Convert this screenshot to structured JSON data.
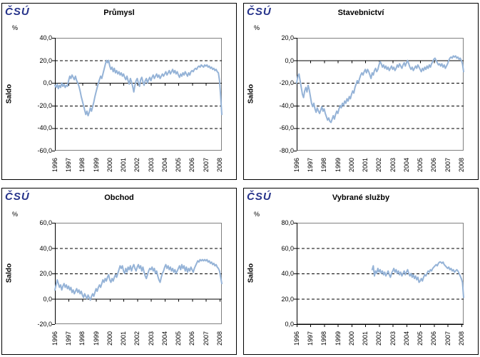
{
  "logo_text": "ČSÚ",
  "colors": {
    "series_line": "#95B3D7",
    "logo_navy": "#27348B",
    "plot_border": "#808080",
    "axis_black": "#000000"
  },
  "chart_data": [
    {
      "type": "line",
      "title": "Průmysl",
      "unit": "%",
      "ylabel": "Saldo",
      "ylim": [
        -60,
        40
      ],
      "y_ticks": [
        40,
        20,
        0,
        -20,
        -40,
        -60
      ],
      "y_tick_labels": [
        "40,0",
        "20,0",
        "0,0",
        "-20,0",
        "-40,0",
        "-60,0"
      ],
      "x_labels": [
        "1996",
        "1997",
        "1998",
        "1999",
        "2000",
        "2001",
        "2002",
        "2003",
        "2004",
        "2005",
        "2006",
        "2007",
        "2008"
      ],
      "x_tick_step": 12,
      "x_total_months": 147,
      "x_start_index": 0,
      "series_name": "saldo",
      "values": [
        -2,
        -4,
        -1,
        -5,
        -2,
        -4,
        0,
        -3,
        -1,
        -4,
        -2,
        -3,
        2,
        6,
        4,
        7,
        5,
        3,
        6,
        2,
        0,
        -3,
        -7,
        -12,
        -16,
        -20,
        -24,
        -28,
        -25,
        -29,
        -26,
        -22,
        -25,
        -21,
        -17,
        -12,
        -8,
        -4,
        0,
        3,
        6,
        4,
        8,
        12,
        16,
        20,
        18,
        20,
        15,
        12,
        14,
        10,
        13,
        9,
        11,
        8,
        10,
        7,
        9,
        6,
        8,
        5,
        3,
        6,
        2,
        -1,
        4,
        1,
        -3,
        -8,
        -2,
        2,
        4,
        0,
        -3,
        3,
        5,
        1,
        -2,
        2,
        4,
        0,
        3,
        5,
        2,
        5,
        7,
        4,
        6,
        8,
        5,
        7,
        4,
        6,
        8,
        6,
        8,
        10,
        7,
        9,
        11,
        8,
        10,
        12,
        9,
        11,
        8,
        10,
        7,
        5,
        8,
        6,
        9,
        7,
        10,
        8,
        6,
        9,
        7,
        10,
        11,
        10,
        12,
        13,
        12,
        14,
        15,
        14,
        16,
        15,
        14,
        16,
        15,
        16,
        14,
        15,
        13,
        14,
        12,
        13,
        11,
        12,
        10,
        9,
        2,
        -12,
        -28
      ]
    },
    {
      "type": "line",
      "title": "Stavebnictví",
      "unit": "%",
      "ylabel": "Saldo",
      "ylim": [
        -80,
        20
      ],
      "y_ticks": [
        20,
        0,
        -20,
        -40,
        -60,
        -80
      ],
      "y_tick_labels": [
        "20,0",
        "0,0",
        "-20,0",
        "-40,0",
        "-60,0",
        "-80,0"
      ],
      "x_labels": [
        "1996",
        "1997",
        "1998",
        "1999",
        "2000",
        "2001",
        "2002",
        "2003",
        "2004",
        "2005",
        "2006",
        "2007",
        "2008"
      ],
      "x_tick_step": 12,
      "x_total_months": 147,
      "x_start_index": 0,
      "series_name": "saldo",
      "values": [
        -20,
        -14,
        -12,
        -18,
        -24,
        -30,
        -33,
        -27,
        -24,
        -28,
        -22,
        -26,
        -32,
        -38,
        -41,
        -38,
        -43,
        -46,
        -42,
        -45,
        -47,
        -44,
        -41,
        -45,
        -43,
        -47,
        -50,
        -53,
        -51,
        -54,
        -55,
        -52,
        -49,
        -52,
        -48,
        -45,
        -47,
        -43,
        -40,
        -42,
        -38,
        -40,
        -36,
        -38,
        -34,
        -36,
        -32,
        -34,
        -30,
        -27,
        -29,
        -24,
        -21,
        -18,
        -20,
        -16,
        -13,
        -11,
        -13,
        -10,
        -8,
        -11,
        -8,
        -10,
        -13,
        -16,
        -11,
        -13,
        -9,
        -7,
        -10,
        -8,
        -4,
        -1,
        -3,
        -6,
        -4,
        -7,
        -5,
        -8,
        -6,
        -9,
        -7,
        -5,
        -8,
        -6,
        -9,
        -7,
        -4,
        -6,
        -3,
        -5,
        -7,
        -4,
        -2,
        -5,
        -2,
        0,
        -3,
        -6,
        -8,
        -6,
        -9,
        -7,
        -5,
        -7,
        -4,
        -6,
        -8,
        -10,
        -7,
        -9,
        -6,
        -8,
        -5,
        -7,
        -4,
        -6,
        -3,
        -1,
        1,
        2,
        0,
        -2,
        -4,
        -3,
        -5,
        -3,
        -6,
        -4,
        -7,
        -5,
        -3,
        0,
        2,
        3,
        2,
        4,
        3,
        4,
        2,
        3,
        1,
        2,
        0,
        -3,
        -10
      ]
    },
    {
      "type": "line",
      "title": "Obchod",
      "unit": "%",
      "ylabel": "Saldo",
      "ylim": [
        -20,
        60
      ],
      "y_ticks": [
        60,
        40,
        20,
        0,
        -20
      ],
      "y_tick_labels": [
        "60,0",
        "40,0",
        "20,0",
        "0,0",
        "-20,0"
      ],
      "x_labels": [
        "1996",
        "1997",
        "1998",
        "1999",
        "2000",
        "2001",
        "2002",
        "2003",
        "2004",
        "2005",
        "2006",
        "2007",
        "2008"
      ],
      "x_tick_step": 12,
      "x_total_months": 147,
      "x_start_index": 0,
      "series_name": "saldo",
      "values": [
        7,
        11,
        15,
        12,
        9,
        11,
        7,
        10,
        12,
        9,
        11,
        8,
        10,
        7,
        9,
        5,
        7,
        4,
        6,
        8,
        5,
        7,
        4,
        6,
        3,
        1,
        4,
        2,
        0,
        3,
        1,
        -1,
        2,
        4,
        2,
        5,
        8,
        6,
        9,
        11,
        9,
        12,
        15,
        13,
        16,
        14,
        17,
        19,
        15,
        13,
        16,
        14,
        17,
        19,
        17,
        20,
        23,
        26,
        24,
        26,
        22,
        20,
        24,
        21,
        25,
        23,
        26,
        22,
        25,
        27,
        24,
        22,
        25,
        27,
        24,
        26,
        22,
        25,
        21,
        18,
        16,
        19,
        22,
        24,
        23,
        25,
        22,
        24,
        20,
        22,
        18,
        15,
        13,
        17,
        20,
        22,
        25,
        27,
        24,
        26,
        23,
        25,
        22,
        24,
        21,
        23,
        20,
        22,
        24,
        26,
        23,
        27,
        24,
        26,
        22,
        25,
        21,
        24,
        22,
        25,
        23,
        21,
        24,
        26,
        28,
        30,
        29,
        31,
        30,
        31,
        30,
        31,
        30,
        31,
        29,
        30,
        28,
        29,
        27,
        28,
        26,
        27,
        25,
        24,
        22,
        17,
        12
      ]
    },
    {
      "type": "line",
      "title": "Vybrané služby",
      "unit": "%",
      "ylabel": "Saldo",
      "ylim": [
        0,
        80
      ],
      "y_ticks": [
        80,
        60,
        40,
        20,
        0
      ],
      "y_tick_labels": [
        "80,0",
        "60,0",
        "40,0",
        "20,0",
        "0,0"
      ],
      "x_labels": [
        "1996",
        "1997",
        "1998",
        "1999",
        "2000",
        "2001",
        "2002",
        "2003",
        "2004",
        "2005",
        "2006",
        "2007",
        "2008"
      ],
      "x_tick_step": 12,
      "x_total_months": 147,
      "x_start_index": 66,
      "series_name": "saldo",
      "values": [
        43,
        46,
        38,
        42,
        40,
        44,
        41,
        43,
        40,
        42,
        39,
        41,
        38,
        40,
        42,
        39,
        37,
        40,
        42,
        44,
        41,
        43,
        40,
        42,
        39,
        41,
        38,
        40,
        42,
        39,
        41,
        43,
        40,
        38,
        40,
        37,
        39,
        36,
        38,
        35,
        37,
        33,
        34,
        36,
        34,
        37,
        39,
        38,
        40,
        42,
        41,
        43,
        42,
        44,
        45,
        46,
        47,
        46,
        48,
        49,
        49,
        48,
        49,
        47,
        46,
        45,
        44,
        45,
        43,
        44,
        42,
        43,
        41,
        42,
        43,
        42,
        40,
        38,
        36,
        33,
        21
      ]
    }
  ]
}
